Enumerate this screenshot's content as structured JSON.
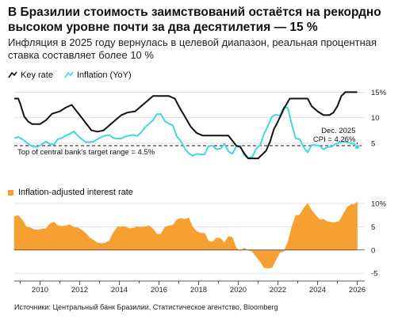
{
  "header": {
    "title": "В Бразилии стоимость заимствований остаётся на рекордно высоком уровне почти за два десятилетия — 15 %",
    "subtitle": "Инфляция в 2025 году вернулась в целевой диапазон, реальная процентная ставка составляет более 10 %"
  },
  "legend": {
    "key_rate": "Key rate",
    "inflation": "Inflation (YoY)",
    "real_rate": "Inflation-adjusted interest rate"
  },
  "annotations": {
    "target": "Top of central bank's target range = 4.5%",
    "cpi_line1": "Dec. 2025",
    "cpi_line2": "CPI = 4.26%"
  },
  "source": "Источники: Центральный банк Бразилии, Статистическое агентство, Bloomberg",
  "colors": {
    "key_rate": "#111111",
    "inflation": "#40d8e0",
    "real_rate": "#f5a030"
  },
  "chart_data": [
    {
      "type": "line",
      "x_range": [
        2008.7,
        2026.3
      ],
      "ylim": [
        0,
        16
      ],
      "yticks": [
        5,
        10,
        15
      ],
      "ytick_labels": [
        "5",
        "10",
        "15%"
      ],
      "reference_line": {
        "y": 4.5,
        "label": "Top of central bank's target range = 4.5%"
      },
      "series": [
        {
          "name": "Key rate",
          "x": [
            2008.7,
            2008.9,
            2009.0,
            2009.2,
            2009.4,
            2009.6,
            2010.0,
            2010.3,
            2010.6,
            2011.0,
            2011.3,
            2011.6,
            2011.8,
            2012.0,
            2012.3,
            2012.6,
            2012.9,
            2013.2,
            2013.5,
            2013.8,
            2014.1,
            2014.4,
            2014.8,
            2015.1,
            2015.4,
            2015.7,
            2016.0,
            2016.5,
            2016.8,
            2017.0,
            2017.3,
            2017.6,
            2017.9,
            2018.2,
            2018.5,
            2019.0,
            2019.5,
            2019.7,
            2019.9,
            2020.1,
            2020.3,
            2020.5,
            2021.0,
            2021.2,
            2021.4,
            2021.6,
            2021.8,
            2022.0,
            2022.3,
            2022.6,
            2023.0,
            2023.5,
            2023.7,
            2024.0,
            2024.3,
            2024.6,
            2024.8,
            2025.0,
            2025.2,
            2025.4,
            2025.6,
            2026.0
          ],
          "y": [
            13.75,
            13.75,
            12.75,
            10.25,
            9.25,
            8.75,
            8.75,
            9.5,
            10.75,
            11.25,
            12.0,
            12.5,
            11.5,
            10.5,
            9.0,
            7.5,
            7.25,
            7.5,
            8.5,
            9.5,
            10.5,
            11.0,
            11.25,
            12.25,
            13.25,
            14.25,
            14.25,
            14.25,
            13.75,
            12.25,
            10.25,
            8.25,
            7.0,
            6.5,
            6.5,
            6.5,
            6.5,
            5.5,
            4.5,
            4.25,
            3.0,
            2.0,
            2.0,
            2.75,
            3.5,
            5.25,
            7.75,
            9.25,
            11.75,
            13.75,
            13.75,
            13.75,
            12.25,
            11.25,
            10.5,
            10.5,
            11.0,
            12.25,
            14.25,
            15.0,
            15.0,
            15.0
          ]
        },
        {
          "name": "Inflation (YoY)",
          "x": [
            2008.7,
            2008.9,
            2009.1,
            2009.3,
            2009.5,
            2009.7,
            2009.9,
            2010.1,
            2010.3,
            2010.5,
            2010.7,
            2010.9,
            2011.1,
            2011.3,
            2011.5,
            2011.7,
            2011.9,
            2012.1,
            2012.3,
            2012.5,
            2012.7,
            2012.9,
            2013.1,
            2013.3,
            2013.5,
            2013.7,
            2013.9,
            2014.1,
            2014.3,
            2014.5,
            2014.7,
            2014.9,
            2015.1,
            2015.3,
            2015.5,
            2015.7,
            2015.9,
            2016.1,
            2016.3,
            2016.5,
            2016.7,
            2016.9,
            2017.1,
            2017.3,
            2017.5,
            2017.7,
            2017.9,
            2018.1,
            2018.3,
            2018.5,
            2018.7,
            2018.9,
            2019.1,
            2019.3,
            2019.5,
            2019.7,
            2019.9,
            2020.1,
            2020.3,
            2020.5,
            2020.7,
            2020.9,
            2021.1,
            2021.3,
            2021.5,
            2021.7,
            2021.9,
            2022.1,
            2022.3,
            2022.5,
            2022.7,
            2022.9,
            2023.1,
            2023.3,
            2023.5,
            2023.7,
            2023.9,
            2024.1,
            2024.3,
            2024.5,
            2024.7,
            2024.9,
            2025.1,
            2025.3,
            2025.5,
            2025.7,
            2025.85,
            2026.0
          ],
          "y": [
            6.0,
            6.2,
            5.8,
            5.2,
            4.6,
            4.3,
            4.3,
            4.8,
            5.3,
            4.8,
            4.7,
            5.8,
            6.0,
            6.5,
            6.8,
            7.3,
            6.5,
            5.8,
            5.2,
            5.2,
            5.3,
            5.8,
            6.2,
            6.5,
            6.6,
            6.0,
            5.9,
            5.9,
            6.3,
            6.5,
            6.6,
            6.4,
            7.1,
            8.1,
            8.8,
            9.5,
            10.7,
            10.7,
            9.3,
            8.8,
            8.5,
            6.3,
            5.4,
            4.0,
            3.0,
            2.5,
            2.9,
            2.8,
            2.8,
            4.4,
            4.5,
            3.8,
            3.9,
            4.9,
            3.4,
            2.9,
            4.3,
            4.5,
            2.6,
            2.1,
            2.3,
            3.9,
            4.6,
            6.8,
            8.4,
            10.2,
            10.6,
            10.4,
            12.1,
            11.9,
            8.7,
            5.9,
            5.8,
            4.2,
            3.2,
            4.6,
            4.6,
            4.5,
            3.8,
            4.2,
            4.3,
            4.8,
            5.1,
            5.3,
            5.2,
            4.9,
            4.9,
            4.26
          ]
        }
      ]
    },
    {
      "type": "area",
      "x_range": [
        2008.7,
        2026.3
      ],
      "ylim": [
        -6,
        10
      ],
      "yticks": [
        -5,
        0,
        5,
        10
      ],
      "ytick_labels": [
        "-5",
        "0",
        "5",
        "10%"
      ],
      "xticks": [
        2010,
        2012,
        2014,
        2016,
        2018,
        2020,
        2022,
        2024,
        2026
      ],
      "xtick_labels": [
        "2010",
        "2012",
        "2014",
        "2016",
        "2018",
        "2020",
        "2022",
        "2024",
        "2026"
      ],
      "series": [
        {
          "name": "Inflation-adjusted interest rate",
          "x": [
            2008.7,
            2008.9,
            2009.1,
            2009.3,
            2009.5,
            2009.7,
            2009.9,
            2010.1,
            2010.3,
            2010.5,
            2010.7,
            2010.9,
            2011.1,
            2011.3,
            2011.5,
            2011.7,
            2011.9,
            2012.1,
            2012.3,
            2012.5,
            2012.7,
            2012.9,
            2013.1,
            2013.3,
            2013.5,
            2013.7,
            2013.9,
            2014.1,
            2014.3,
            2014.5,
            2014.7,
            2014.9,
            2015.1,
            2015.3,
            2015.5,
            2015.7,
            2015.9,
            2016.1,
            2016.3,
            2016.5,
            2016.7,
            2016.9,
            2017.1,
            2017.3,
            2017.5,
            2017.7,
            2017.9,
            2018.1,
            2018.3,
            2018.5,
            2018.7,
            2018.9,
            2019.1,
            2019.3,
            2019.5,
            2019.7,
            2019.9,
            2020.1,
            2020.3,
            2020.5,
            2020.7,
            2020.9,
            2021.1,
            2021.3,
            2021.5,
            2021.7,
            2021.9,
            2022.1,
            2022.3,
            2022.5,
            2022.7,
            2022.9,
            2023.1,
            2023.3,
            2023.5,
            2023.7,
            2023.9,
            2024.1,
            2024.3,
            2024.5,
            2024.7,
            2024.9,
            2025.1,
            2025.3,
            2025.5,
            2025.7,
            2025.85,
            2026.0
          ],
          "y": [
            7.2,
            7.4,
            6.5,
            5.0,
            4.8,
            4.4,
            4.3,
            4.5,
            4.6,
            5.6,
            6.0,
            5.2,
            5.1,
            5.2,
            5.4,
            4.9,
            4.8,
            4.3,
            3.6,
            2.6,
            2.1,
            1.5,
            1.4,
            1.5,
            2.0,
            3.7,
            4.9,
            5.0,
            5.0,
            4.6,
            4.7,
            5.0,
            4.9,
            5.0,
            5.2,
            4.5,
            3.4,
            3.4,
            4.9,
            5.2,
            5.3,
            6.5,
            6.8,
            6.6,
            6.9,
            4.9,
            4.0,
            3.6,
            3.6,
            1.9,
            1.7,
            2.6,
            2.5,
            1.5,
            2.9,
            2.7,
            0.4,
            -0.2,
            0.4,
            -0.1,
            -0.3,
            -1.4,
            -2.4,
            -3.8,
            -3.9,
            -3.8,
            -2.1,
            -0.5,
            -0.3,
            1.6,
            4.9,
            7.4,
            7.5,
            9.0,
            10.0,
            8.5,
            7.5,
            6.5,
            6.6,
            6.1,
            5.9,
            5.9,
            6.2,
            7.7,
            9.2,
            9.8,
            9.8,
            10.3
          ]
        }
      ]
    }
  ]
}
